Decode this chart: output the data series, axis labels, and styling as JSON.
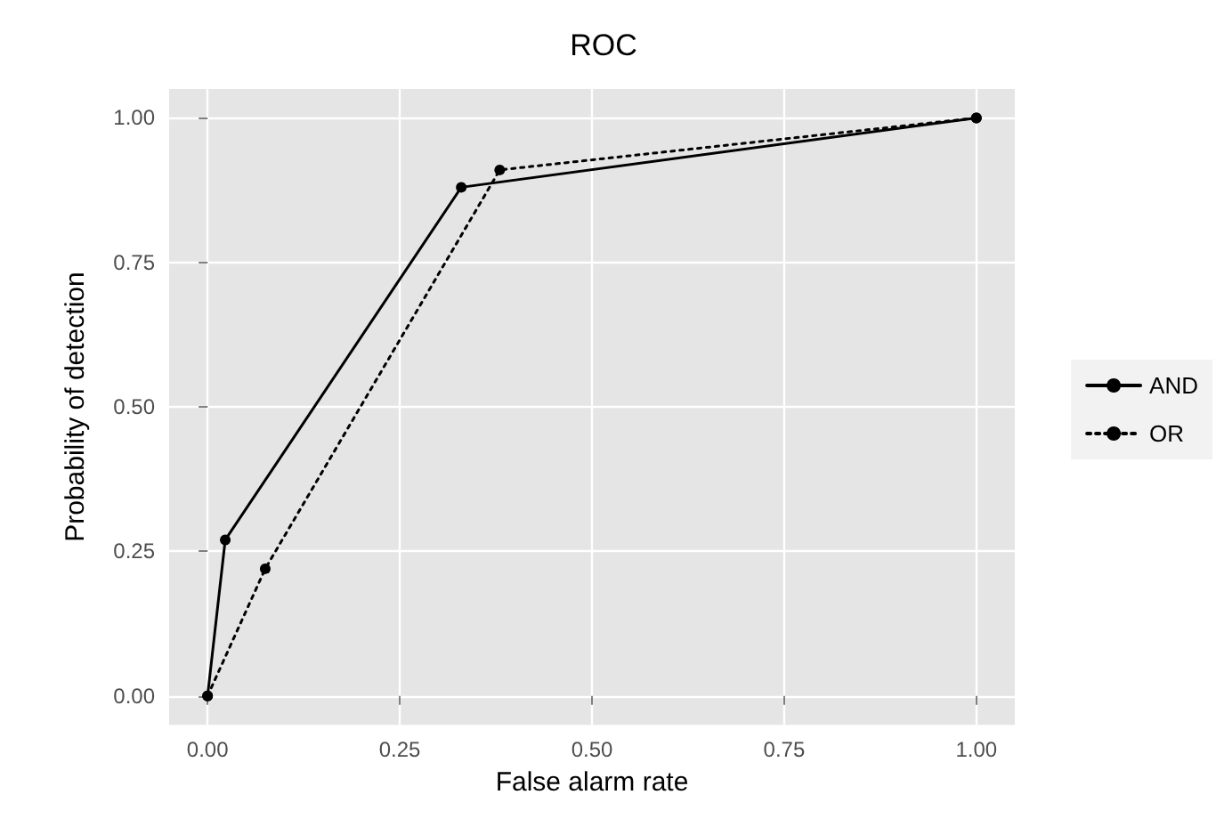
{
  "chart_data": {
    "type": "line",
    "title": "ROC",
    "xlabel": "False alarm rate",
    "ylabel": "Probability of detection",
    "series": [
      {
        "name": "AND",
        "color": "#000000",
        "line_style": "solid",
        "x": [
          0,
          0.023,
          0.33,
          1
        ],
        "values": [
          0,
          0.27,
          0.88,
          1
        ]
      },
      {
        "name": "OR",
        "color": "#000000",
        "line_style": "dotted",
        "x": [
          0,
          0.075,
          0.38,
          1
        ],
        "values": [
          0,
          0.22,
          0.91,
          1
        ]
      }
    ],
    "xlim": [
      -0.05,
      1.05
    ],
    "ylim": [
      -0.05,
      1.05
    ],
    "xticks": [
      {
        "value": 0,
        "label": "0.00"
      },
      {
        "value": 0.25,
        "label": "0.25"
      },
      {
        "value": 0.5,
        "label": "0.50"
      },
      {
        "value": 0.75,
        "label": "0.75"
      },
      {
        "value": 1,
        "label": "1.00"
      }
    ],
    "yticks": [
      {
        "value": 0,
        "label": "0.00"
      },
      {
        "value": 0.25,
        "label": "0.25"
      },
      {
        "value": 0.5,
        "label": "0.50"
      },
      {
        "value": 0.75,
        "label": "0.75"
      },
      {
        "value": 1,
        "label": "1.00"
      }
    ],
    "grid": true,
    "legend": "right",
    "marker": "circle"
  }
}
